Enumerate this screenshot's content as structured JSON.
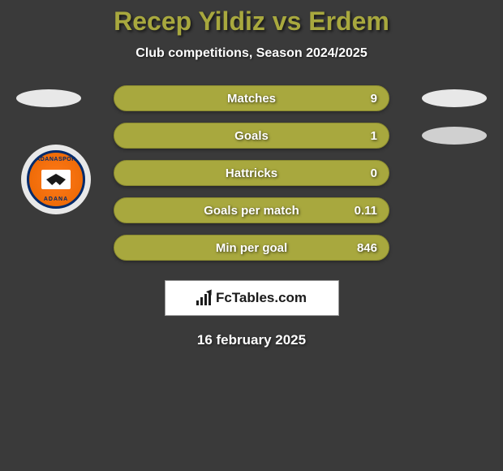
{
  "title": "Recep Yildiz vs Erdem",
  "subtitle": "Club competitions, Season 2024/2025",
  "stats": [
    {
      "label": "Matches",
      "value": "9"
    },
    {
      "label": "Goals",
      "value": "1"
    },
    {
      "label": "Hattricks",
      "value": "0"
    },
    {
      "label": "Goals per match",
      "value": "0.11"
    },
    {
      "label": "Min per goal",
      "value": "846"
    }
  ],
  "club_logo": {
    "top_text": "ADANASPOR",
    "bottom_text": "ADANA"
  },
  "branding": {
    "site_name": "FcTables.com"
  },
  "date": "16 february 2025",
  "colors": {
    "pill_bg": "#a8a83e",
    "pill_border": "#8a8a30",
    "title_color": "#a8a83e",
    "page_bg": "#3a3a3a",
    "ellipse_bg": "#e8e8e8",
    "logo_orange": "#ff7a1a",
    "logo_navy": "#002a6b"
  }
}
